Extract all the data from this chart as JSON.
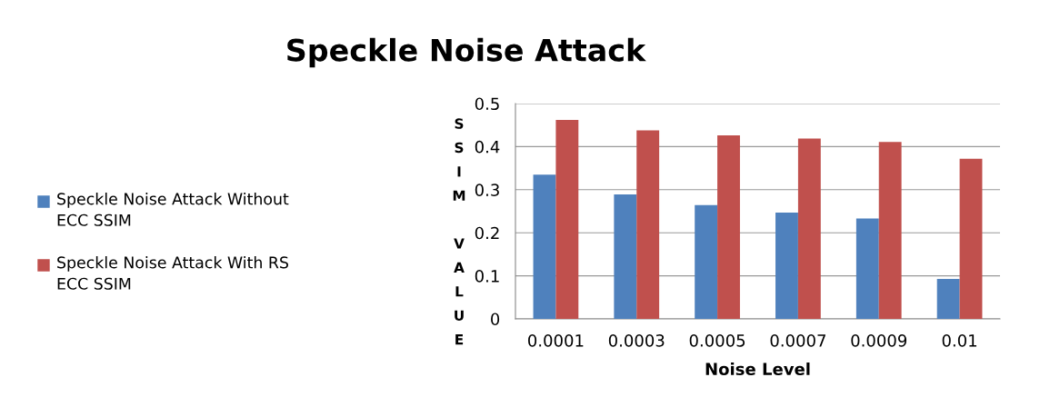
{
  "chart_data": {
    "type": "bar",
    "title": "Speckle Noise Attack",
    "xlabel": "Noise Level",
    "ylabel": "SSIM VALUE",
    "categories": [
      "0.0001",
      "0.0003",
      "0.0005",
      "0.0007",
      "0.0009",
      "0.01"
    ],
    "series": [
      {
        "name": "Speckle Noise Attack Without ECC SSIM",
        "color": "#4f81bd",
        "values": [
          0.335,
          0.289,
          0.264,
          0.247,
          0.233,
          0.093
        ]
      },
      {
        "name": "Speckle Noise Attack With RS ECC SSIM",
        "color": "#c0504d",
        "values": [
          0.462,
          0.438,
          0.426,
          0.419,
          0.411,
          0.372
        ]
      }
    ],
    "ylim": [
      0,
      0.5
    ],
    "yticks": [
      0,
      0.1,
      0.2,
      0.3,
      0.4,
      0.5
    ],
    "grid": "y",
    "legend": "left"
  }
}
